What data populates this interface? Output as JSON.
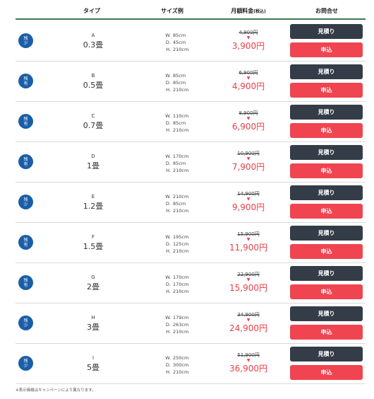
{
  "header": {
    "type": "タイプ",
    "size_example": "サイズ例",
    "monthly_fee": "月額料金",
    "monthly_fee_tax": "(税込)",
    "inquiry": "お問合せ"
  },
  "buttons": {
    "quote": "見積り",
    "apply": "申込"
  },
  "dim_keys": {
    "w": "W.",
    "d": "D.",
    "h": "H."
  },
  "arrow_glyph": "▼",
  "rows": [
    {
      "status": [
        "残",
        "少"
      ],
      "letter": "A",
      "size": "0.3畳",
      "w": "85cm",
      "d": "45cm",
      "h": "210cm",
      "old_price": "4,900円",
      "new_price": "3,900円"
    },
    {
      "status": [
        "残",
        "有"
      ],
      "letter": "B",
      "size": "0.5畳",
      "w": "85cm",
      "d": "85cm",
      "h": "210cm",
      "old_price": "6,900円",
      "new_price": "4,900円"
    },
    {
      "status": [
        "残",
        "有"
      ],
      "letter": "C",
      "size": "0.7畳",
      "w": "110cm",
      "d": "85cm",
      "h": "210cm",
      "old_price": "8,900円",
      "new_price": "6,900円"
    },
    {
      "status": [
        "残",
        "有"
      ],
      "letter": "D",
      "size": "1畳",
      "w": "170cm",
      "d": "85cm",
      "h": "210cm",
      "old_price": "10,900円",
      "new_price": "7,900円"
    },
    {
      "status": [
        "残",
        "少"
      ],
      "letter": "E",
      "size": "1.2畳",
      "w": "210cm",
      "d": "85cm",
      "h": "210cm",
      "old_price": "14,900円",
      "new_price": "9,900円"
    },
    {
      "status": [
        "残",
        "有"
      ],
      "letter": "F",
      "size": "1.5畳",
      "w": "195cm",
      "d": "125cm",
      "h": "210cm",
      "old_price": "15,900円",
      "new_price": "11,900円"
    },
    {
      "status": [
        "残",
        "有"
      ],
      "letter": "G",
      "size": "2畳",
      "w": "170cm",
      "d": "170cm",
      "h": "210cm",
      "old_price": "22,900円",
      "new_price": "15,900円"
    },
    {
      "status": [
        "残",
        "少"
      ],
      "letter": "H",
      "size": "3畳",
      "w": "179cm",
      "d": "263cm",
      "h": "210cm",
      "old_price": "34,900円",
      "new_price": "24,900円"
    },
    {
      "status": [
        "残",
        "少"
      ],
      "letter": "I",
      "size": "5畳",
      "w": "250cm",
      "d": "300cm",
      "h": "210cm",
      "old_price": "51,900円",
      "new_price": "36,900円"
    }
  ],
  "footnote": "※表示価格はキャンペーンにより異なります。",
  "colors": {
    "badge": "#1a5ea8",
    "quote_button": "#343c47",
    "apply_button": "#f04450",
    "price_red": "#e8414a",
    "header_rule": "#3e7a50"
  }
}
